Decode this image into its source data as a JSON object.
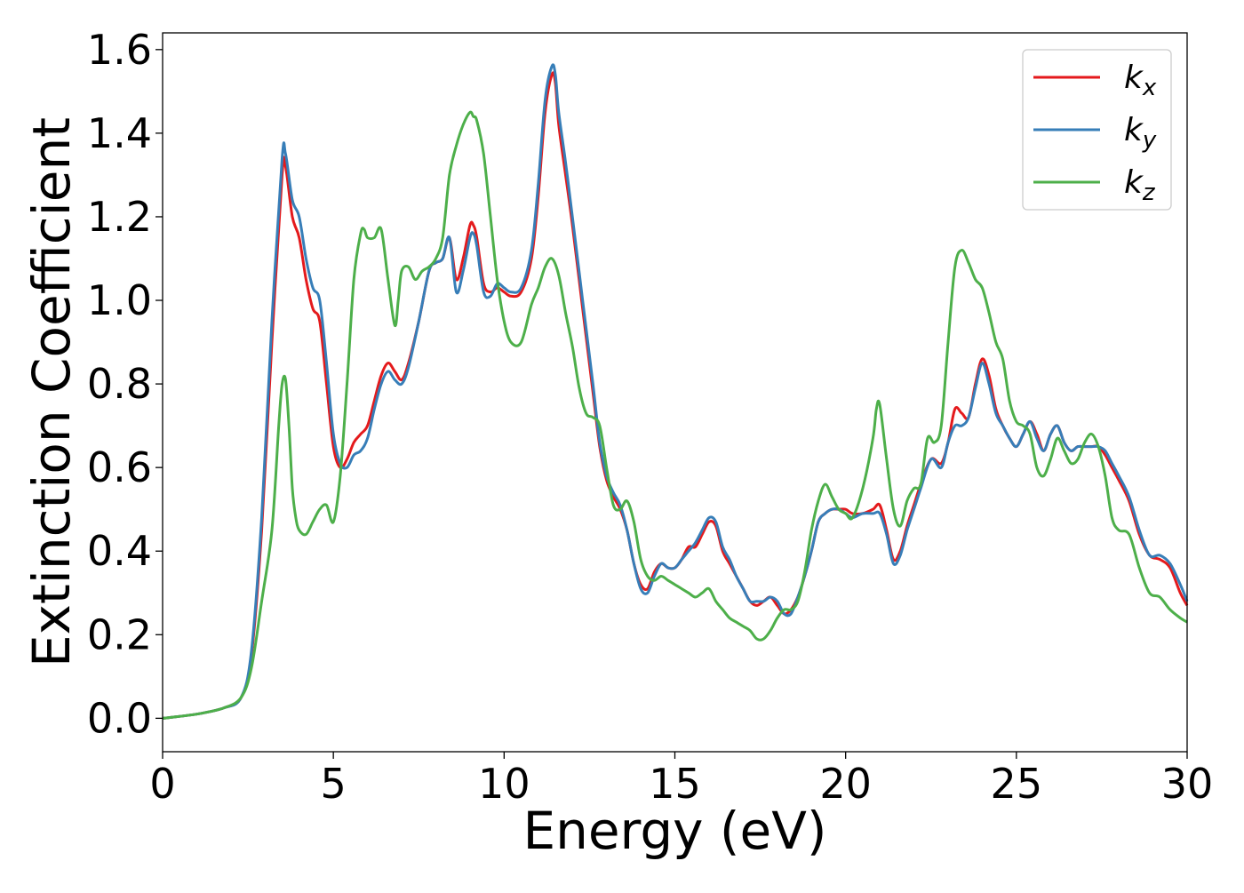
{
  "chart_data": {
    "type": "line",
    "title": "",
    "xlabel": "Energy (eV)",
    "ylabel": "Extinction Coefficient",
    "xlim": [
      0,
      30
    ],
    "ylim": [
      -0.08,
      1.64
    ],
    "xticks": [
      0,
      5,
      10,
      15,
      20,
      25,
      30
    ],
    "xtick_labels": [
      "0",
      "5",
      "10",
      "15",
      "20",
      "25",
      "30"
    ],
    "yticks": [
      0.0,
      0.2,
      0.4,
      0.6,
      0.8,
      1.0,
      1.2,
      1.4,
      1.6
    ],
    "ytick_labels": [
      "0.0",
      "0.2",
      "0.4",
      "0.6",
      "0.8",
      "1.0",
      "1.2",
      "1.4",
      "1.6"
    ],
    "grid": false,
    "legend_position": "top-right",
    "series": [
      {
        "name": "k_x",
        "legend_main": "k",
        "legend_sub": "x",
        "color": "#e41a1c",
        "x": [
          0,
          1,
          1.8,
          2.3,
          2.6,
          2.9,
          3.2,
          3.5,
          3.6,
          3.8,
          4.0,
          4.2,
          4.4,
          4.6,
          4.8,
          5.0,
          5.2,
          5.4,
          5.6,
          5.8,
          6.0,
          6.2,
          6.4,
          6.6,
          6.8,
          7.0,
          7.2,
          7.5,
          7.8,
          8.0,
          8.2,
          8.4,
          8.6,
          8.8,
          9.0,
          9.1,
          9.2,
          9.4,
          9.6,
          9.8,
          10.0,
          10.2,
          10.5,
          10.8,
          11.0,
          11.2,
          11.4,
          11.5,
          11.6,
          11.8,
          12.0,
          12.3,
          12.6,
          12.8,
          13.0,
          13.2,
          13.4,
          13.6,
          13.8,
          14.0,
          14.2,
          14.4,
          14.6,
          14.8,
          15.0,
          15.2,
          15.4,
          15.6,
          15.8,
          16.0,
          16.2,
          16.4,
          16.6,
          16.8,
          17.0,
          17.2,
          17.4,
          17.6,
          17.8,
          18.0,
          18.2,
          18.4,
          18.6,
          18.8,
          19.0,
          19.2,
          19.4,
          19.6,
          19.8,
          20.0,
          20.2,
          20.5,
          20.8,
          21.0,
          21.2,
          21.4,
          21.6,
          21.8,
          22.0,
          22.2,
          22.5,
          22.8,
          23.0,
          23.2,
          23.4,
          23.6,
          23.8,
          24.0,
          24.2,
          24.4,
          24.6,
          24.8,
          25.0,
          25.2,
          25.4,
          25.6,
          25.8,
          26.0,
          26.2,
          26.4,
          26.6,
          26.8,
          27.0,
          27.2,
          27.4,
          27.6,
          27.8,
          28.0,
          28.3,
          28.6,
          28.9,
          29.2,
          29.5,
          29.8,
          30.0
        ],
        "y": [
          0.0,
          0.01,
          0.025,
          0.05,
          0.15,
          0.45,
          0.9,
          1.3,
          1.32,
          1.2,
          1.15,
          1.05,
          0.98,
          0.95,
          0.8,
          0.65,
          0.6,
          0.62,
          0.66,
          0.68,
          0.7,
          0.76,
          0.82,
          0.85,
          0.83,
          0.81,
          0.85,
          0.95,
          1.07,
          1.09,
          1.1,
          1.15,
          1.05,
          1.1,
          1.18,
          1.18,
          1.15,
          1.04,
          1.02,
          1.03,
          1.02,
          1.01,
          1.02,
          1.1,
          1.25,
          1.45,
          1.54,
          1.52,
          1.42,
          1.3,
          1.18,
          0.98,
          0.78,
          0.65,
          0.57,
          0.53,
          0.5,
          0.45,
          0.37,
          0.32,
          0.31,
          0.35,
          0.37,
          0.36,
          0.36,
          0.38,
          0.41,
          0.41,
          0.44,
          0.47,
          0.46,
          0.4,
          0.37,
          0.34,
          0.31,
          0.28,
          0.27,
          0.28,
          0.29,
          0.27,
          0.25,
          0.26,
          0.29,
          0.34,
          0.4,
          0.47,
          0.49,
          0.5,
          0.5,
          0.5,
          0.49,
          0.49,
          0.5,
          0.51,
          0.45,
          0.38,
          0.4,
          0.46,
          0.51,
          0.56,
          0.62,
          0.61,
          0.66,
          0.74,
          0.73,
          0.72,
          0.8,
          0.86,
          0.82,
          0.74,
          0.7,
          0.67,
          0.65,
          0.68,
          0.71,
          0.68,
          0.64,
          0.68,
          0.7,
          0.66,
          0.64,
          0.65,
          0.65,
          0.65,
          0.65,
          0.63,
          0.6,
          0.57,
          0.52,
          0.44,
          0.39,
          0.38,
          0.36,
          0.3,
          0.27
        ]
      },
      {
        "name": "k_y",
        "legend_main": "k",
        "legend_sub": "y",
        "color": "#377eb8",
        "x": [
          0,
          1,
          1.8,
          2.3,
          2.6,
          2.9,
          3.2,
          3.5,
          3.6,
          3.8,
          4.0,
          4.2,
          4.4,
          4.6,
          4.8,
          5.0,
          5.2,
          5.4,
          5.6,
          5.8,
          6.0,
          6.2,
          6.4,
          6.6,
          6.8,
          7.0,
          7.2,
          7.5,
          7.8,
          8.0,
          8.2,
          8.4,
          8.6,
          8.8,
          9.0,
          9.1,
          9.2,
          9.4,
          9.6,
          9.8,
          10.0,
          10.2,
          10.5,
          10.8,
          11.0,
          11.2,
          11.4,
          11.5,
          11.6,
          11.8,
          12.0,
          12.3,
          12.6,
          12.8,
          13.0,
          13.2,
          13.4,
          13.6,
          13.8,
          14.0,
          14.2,
          14.4,
          14.6,
          14.8,
          15.0,
          15.2,
          15.4,
          15.6,
          15.8,
          16.0,
          16.2,
          16.4,
          16.6,
          16.8,
          17.0,
          17.2,
          17.4,
          17.6,
          17.8,
          18.0,
          18.2,
          18.4,
          18.6,
          18.8,
          19.0,
          19.2,
          19.4,
          19.6,
          19.8,
          20.0,
          20.2,
          20.5,
          20.8,
          21.0,
          21.2,
          21.4,
          21.6,
          21.8,
          22.0,
          22.2,
          22.5,
          22.8,
          23.0,
          23.2,
          23.4,
          23.6,
          23.8,
          24.0,
          24.2,
          24.4,
          24.6,
          24.8,
          25.0,
          25.2,
          25.4,
          25.6,
          25.8,
          26.0,
          26.2,
          26.4,
          26.6,
          26.8,
          27.0,
          27.2,
          27.4,
          27.6,
          27.8,
          28.0,
          28.3,
          28.6,
          28.9,
          29.2,
          29.5,
          29.8,
          30.0
        ],
        "y": [
          0.0,
          0.01,
          0.025,
          0.05,
          0.16,
          0.48,
          0.95,
          1.34,
          1.35,
          1.24,
          1.2,
          1.1,
          1.03,
          1.0,
          0.85,
          0.68,
          0.61,
          0.6,
          0.63,
          0.64,
          0.67,
          0.74,
          0.8,
          0.83,
          0.81,
          0.8,
          0.84,
          0.95,
          1.07,
          1.09,
          1.1,
          1.15,
          1.02,
          1.07,
          1.15,
          1.16,
          1.13,
          1.02,
          1.01,
          1.04,
          1.03,
          1.02,
          1.03,
          1.12,
          1.28,
          1.48,
          1.56,
          1.54,
          1.45,
          1.33,
          1.2,
          1.0,
          0.8,
          0.66,
          0.58,
          0.54,
          0.51,
          0.45,
          0.37,
          0.31,
          0.3,
          0.34,
          0.37,
          0.36,
          0.36,
          0.38,
          0.4,
          0.42,
          0.45,
          0.48,
          0.47,
          0.41,
          0.38,
          0.34,
          0.31,
          0.28,
          0.28,
          0.28,
          0.29,
          0.28,
          0.25,
          0.25,
          0.29,
          0.34,
          0.4,
          0.47,
          0.49,
          0.5,
          0.5,
          0.49,
          0.48,
          0.49,
          0.49,
          0.49,
          0.44,
          0.37,
          0.39,
          0.45,
          0.5,
          0.55,
          0.62,
          0.6,
          0.66,
          0.7,
          0.7,
          0.72,
          0.79,
          0.85,
          0.8,
          0.73,
          0.7,
          0.67,
          0.65,
          0.68,
          0.71,
          0.67,
          0.64,
          0.68,
          0.7,
          0.66,
          0.64,
          0.65,
          0.65,
          0.65,
          0.65,
          0.64,
          0.61,
          0.58,
          0.53,
          0.45,
          0.39,
          0.39,
          0.37,
          0.32,
          0.28
        ]
      },
      {
        "name": "k_z",
        "legend_main": "k",
        "legend_sub": "z",
        "color": "#4daf4a",
        "x": [
          0,
          1,
          1.8,
          2.3,
          2.6,
          2.9,
          3.2,
          3.4,
          3.5,
          3.6,
          3.7,
          3.8,
          3.9,
          4.0,
          4.2,
          4.4,
          4.6,
          4.8,
          5.0,
          5.2,
          5.4,
          5.6,
          5.8,
          5.9,
          6.0,
          6.2,
          6.4,
          6.6,
          6.8,
          6.9,
          7.0,
          7.2,
          7.4,
          7.6,
          7.8,
          8.0,
          8.2,
          8.4,
          8.6,
          8.8,
          9.0,
          9.1,
          9.2,
          9.4,
          9.6,
          9.8,
          10.0,
          10.2,
          10.5,
          10.8,
          11.0,
          11.2,
          11.4,
          11.6,
          11.8,
          12.0,
          12.2,
          12.4,
          12.6,
          12.8,
          13.0,
          13.2,
          13.4,
          13.6,
          13.8,
          14.0,
          14.2,
          14.4,
          14.6,
          14.8,
          15.0,
          15.2,
          15.4,
          15.6,
          15.8,
          16.0,
          16.2,
          16.4,
          16.6,
          16.8,
          17.0,
          17.2,
          17.4,
          17.6,
          17.8,
          18.0,
          18.2,
          18.4,
          18.6,
          18.8,
          19.0,
          19.2,
          19.4,
          19.6,
          19.8,
          20.0,
          20.2,
          20.5,
          20.8,
          20.9,
          21.0,
          21.2,
          21.4,
          21.6,
          21.8,
          22.0,
          22.2,
          22.4,
          22.6,
          22.8,
          23.0,
          23.2,
          23.4,
          23.6,
          23.8,
          24.0,
          24.2,
          24.4,
          24.6,
          24.8,
          25.0,
          25.2,
          25.4,
          25.6,
          25.8,
          26.0,
          26.2,
          26.4,
          26.6,
          26.8,
          27.0,
          27.2,
          27.4,
          27.6,
          27.8,
          28.0,
          28.3,
          28.6,
          28.9,
          29.2,
          29.5,
          29.8,
          30.0
        ],
        "y": [
          0.0,
          0.01,
          0.025,
          0.05,
          0.12,
          0.28,
          0.45,
          0.7,
          0.8,
          0.81,
          0.7,
          0.55,
          0.48,
          0.45,
          0.44,
          0.47,
          0.5,
          0.51,
          0.47,
          0.58,
          0.8,
          1.05,
          1.16,
          1.17,
          1.15,
          1.15,
          1.17,
          1.05,
          0.94,
          1.0,
          1.07,
          1.08,
          1.05,
          1.07,
          1.08,
          1.1,
          1.15,
          1.3,
          1.37,
          1.42,
          1.45,
          1.44,
          1.43,
          1.35,
          1.2,
          1.05,
          0.95,
          0.9,
          0.9,
          0.99,
          1.03,
          1.08,
          1.1,
          1.06,
          0.97,
          0.89,
          0.79,
          0.73,
          0.72,
          0.7,
          0.6,
          0.51,
          0.5,
          0.52,
          0.47,
          0.38,
          0.34,
          0.33,
          0.34,
          0.33,
          0.32,
          0.31,
          0.3,
          0.29,
          0.3,
          0.31,
          0.28,
          0.26,
          0.24,
          0.23,
          0.22,
          0.21,
          0.19,
          0.19,
          0.21,
          0.24,
          0.26,
          0.26,
          0.28,
          0.35,
          0.45,
          0.52,
          0.56,
          0.53,
          0.5,
          0.49,
          0.48,
          0.55,
          0.67,
          0.74,
          0.75,
          0.62,
          0.5,
          0.46,
          0.52,
          0.55,
          0.56,
          0.67,
          0.66,
          0.7,
          0.9,
          1.08,
          1.12,
          1.09,
          1.05,
          1.03,
          0.97,
          0.9,
          0.86,
          0.76,
          0.71,
          0.7,
          0.68,
          0.6,
          0.58,
          0.62,
          0.67,
          0.64,
          0.61,
          0.62,
          0.66,
          0.68,
          0.65,
          0.58,
          0.48,
          0.45,
          0.44,
          0.36,
          0.3,
          0.29,
          0.26,
          0.24,
          0.23
        ]
      }
    ]
  }
}
